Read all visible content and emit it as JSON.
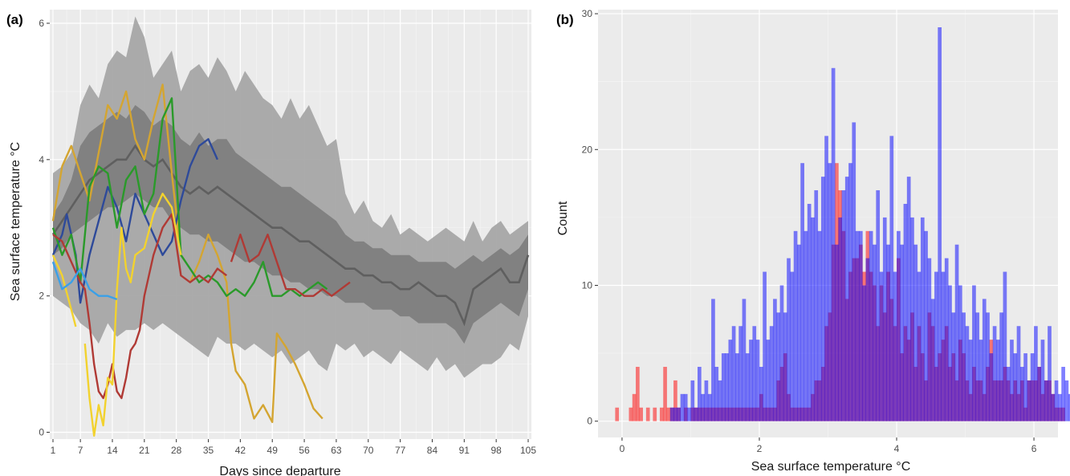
{
  "panels": {
    "a_label": "(a)",
    "b_label": "(b)"
  },
  "chart_data": [
    {
      "type": "line",
      "panel": "(a)",
      "xlabel": "Days since departure",
      "ylabel": "Sea surface temperature  °C",
      "xlim": [
        0.3,
        105.7
      ],
      "ylim": [
        -0.1,
        6.2
      ],
      "xticks": [
        1,
        7,
        14,
        21,
        28,
        35,
        42,
        49,
        56,
        63,
        70,
        77,
        84,
        91,
        98,
        105
      ],
      "yticks": [
        0,
        2,
        4,
        6
      ],
      "grid": true,
      "background": "#ebebeb",
      "envelope": {
        "x": [
          1,
          3,
          5,
          7,
          9,
          11,
          13,
          15,
          17,
          19,
          21,
          23,
          25,
          27,
          29,
          31,
          33,
          35,
          37,
          39,
          41,
          43,
          45,
          47,
          49,
          51,
          53,
          55,
          57,
          59,
          61,
          63,
          65,
          67,
          69,
          71,
          73,
          75,
          77,
          79,
          81,
          83,
          85,
          87,
          89,
          91,
          93,
          95,
          97,
          99,
          101,
          103,
          105
        ],
        "outer_upper": [
          3.8,
          3.9,
          4.1,
          4.8,
          5.1,
          4.9,
          5.4,
          5.6,
          5.5,
          6.1,
          5.8,
          5.2,
          5.4,
          5.6,
          5.0,
          5.3,
          5.4,
          5.2,
          5.5,
          5.3,
          5.0,
          5.3,
          5.1,
          4.9,
          4.8,
          4.6,
          4.9,
          4.6,
          4.8,
          4.5,
          4.2,
          4.3,
          3.5,
          3.2,
          3.4,
          3.1,
          3.0,
          3.2,
          2.9,
          3.0,
          2.9,
          2.8,
          2.9,
          3.0,
          2.9,
          2.8,
          3.1,
          2.8,
          3.0,
          3.1,
          2.9,
          3.0,
          3.1
        ],
        "inner_upper": [
          3.2,
          3.4,
          3.7,
          4.2,
          4.4,
          4.5,
          4.6,
          4.7,
          4.6,
          4.8,
          4.7,
          4.5,
          4.6,
          4.5,
          4.3,
          4.2,
          4.4,
          4.2,
          4.3,
          4.3,
          4.1,
          4.0,
          3.9,
          3.8,
          3.7,
          3.6,
          3.6,
          3.5,
          3.4,
          3.3,
          3.2,
          3.1,
          2.9,
          2.8,
          2.8,
          2.7,
          2.7,
          2.6,
          2.6,
          2.6,
          2.5,
          2.5,
          2.5,
          2.5,
          2.4,
          2.5,
          2.6,
          2.5,
          2.6,
          2.7,
          2.6,
          2.7,
          2.9
        ],
        "mean": [
          2.9,
          3.1,
          3.3,
          3.5,
          3.7,
          3.8,
          3.9,
          4.0,
          4.0,
          4.2,
          4.0,
          3.9,
          4.0,
          3.8,
          3.6,
          3.5,
          3.6,
          3.5,
          3.6,
          3.5,
          3.4,
          3.3,
          3.2,
          3.1,
          3.0,
          3.0,
          2.9,
          2.8,
          2.8,
          2.7,
          2.6,
          2.5,
          2.4,
          2.4,
          2.3,
          2.3,
          2.2,
          2.2,
          2.1,
          2.1,
          2.2,
          2.1,
          2.0,
          2.0,
          1.9,
          1.6,
          2.1,
          2.2,
          2.3,
          2.4,
          2.2,
          2.2,
          2.6
        ],
        "inner_lower": [
          2.6,
          2.7,
          2.9,
          3.0,
          3.1,
          3.2,
          3.3,
          3.3,
          3.4,
          3.5,
          3.4,
          3.3,
          3.3,
          3.1,
          3.0,
          2.9,
          2.9,
          2.8,
          2.8,
          2.7,
          2.6,
          2.5,
          2.5,
          2.4,
          2.3,
          2.3,
          2.2,
          2.2,
          2.1,
          2.1,
          2.0,
          2.0,
          1.9,
          1.9,
          1.9,
          1.8,
          1.8,
          1.8,
          1.7,
          1.7,
          1.6,
          1.6,
          1.6,
          1.6,
          1.5,
          1.3,
          1.6,
          1.7,
          1.8,
          1.9,
          1.8,
          1.7,
          2.1
        ],
        "outer_lower": [
          2.0,
          1.9,
          1.8,
          1.6,
          1.5,
          1.3,
          1.6,
          1.4,
          1.5,
          1.5,
          1.6,
          1.5,
          1.6,
          1.5,
          1.4,
          1.3,
          1.2,
          1.1,
          1.4,
          1.3,
          1.3,
          1.2,
          1.3,
          1.2,
          1.1,
          1.2,
          1.0,
          1.1,
          1.2,
          1.0,
          0.9,
          1.3,
          1.2,
          1.3,
          1.1,
          1.2,
          1.1,
          1.0,
          1.2,
          1.1,
          1.0,
          0.9,
          1.1,
          0.9,
          1.0,
          0.8,
          0.9,
          1.0,
          1.0,
          1.1,
          1.3,
          1.2,
          1.7
        ]
      },
      "series": [
        {
          "color": "#d4a531",
          "x": [
            1,
            3,
            5,
            7,
            9,
            11,
            13,
            15,
            17,
            19,
            21,
            23,
            25,
            27,
            29,
            30
          ],
          "y": [
            3.1,
            3.9,
            4.2,
            3.8,
            3.4,
            4.1,
            4.8,
            4.6,
            5.0,
            4.3,
            4.0,
            4.6,
            5.1,
            3.8,
            2.6,
            2.5
          ]
        },
        {
          "color": "#d4a531",
          "x": [
            31,
            33,
            35,
            37,
            39,
            40,
            41,
            43,
            45,
            47,
            49,
            50,
            52,
            54,
            56,
            58,
            60
          ],
          "y": [
            2.2,
            2.5,
            2.9,
            2.6,
            2.2,
            1.3,
            0.9,
            0.7,
            0.2,
            0.4,
            0.15,
            1.45,
            1.25,
            1.0,
            0.7,
            0.35,
            0.2
          ]
        },
        {
          "color": "#2e4a9a",
          "x": [
            1,
            3,
            4,
            6,
            7,
            9,
            11,
            13,
            15,
            17,
            19,
            21,
            23,
            25,
            27,
            29,
            31,
            33,
            35,
            37
          ],
          "y": [
            2.6,
            2.9,
            3.2,
            2.6,
            1.9,
            2.6,
            3.1,
            3.6,
            3.3,
            2.8,
            3.5,
            3.2,
            2.9,
            2.6,
            2.8,
            3.4,
            3.9,
            4.2,
            4.3,
            4.0
          ]
        },
        {
          "color": "#2a9a2a",
          "x": [
            1,
            3,
            5,
            7,
            9,
            11,
            13,
            15,
            17,
            19,
            21,
            23,
            25,
            27,
            29,
            31,
            33,
            35,
            37,
            39,
            41,
            43,
            45,
            47,
            49,
            51,
            53,
            55,
            57,
            59,
            61
          ],
          "y": [
            3.0,
            2.6,
            2.9,
            2.2,
            3.6,
            3.9,
            3.8,
            3.0,
            3.7,
            3.9,
            3.2,
            3.5,
            4.6,
            4.9,
            2.6,
            2.4,
            2.2,
            2.3,
            2.2,
            2.0,
            2.1,
            2.0,
            2.2,
            2.5,
            2.0,
            2.0,
            2.1,
            2.0,
            2.1,
            2.2,
            2.1
          ]
        },
        {
          "color": "#b03a35",
          "x": [
            1,
            3,
            5,
            7,
            8,
            9,
            10,
            11,
            12,
            13,
            14,
            15,
            16,
            17,
            18,
            19,
            20,
            21,
            23,
            25,
            27,
            29,
            31,
            33,
            35,
            37,
            39
          ],
          "y": [
            2.9,
            2.8,
            2.5,
            2.2,
            2.1,
            1.6,
            1.0,
            0.6,
            0.5,
            0.7,
            1.0,
            0.6,
            0.5,
            0.8,
            1.2,
            1.3,
            1.5,
            2.0,
            2.6,
            3.0,
            3.2,
            2.3,
            2.2,
            2.3,
            2.2,
            2.4,
            2.3
          ]
        },
        {
          "color": "#b03a35",
          "x": [
            40,
            42,
            44,
            46,
            48,
            50,
            52,
            54,
            56,
            58,
            60,
            62,
            64,
            66
          ],
          "y": [
            2.5,
            2.9,
            2.5,
            2.6,
            2.9,
            2.5,
            2.1,
            2.1,
            2.0,
            2.0,
            2.1,
            2.0,
            2.1,
            2.2
          ]
        },
        {
          "color": "#f2d22e",
          "x": [
            1,
            3,
            5,
            6
          ],
          "y": [
            2.6,
            2.3,
            1.8,
            1.55
          ]
        },
        {
          "color": "#f2d22e",
          "x": [
            8,
            9,
            10,
            11,
            12,
            13,
            14,
            15,
            16,
            17,
            18,
            19,
            21,
            23,
            25,
            27,
            29
          ],
          "y": [
            1.3,
            0.5,
            -0.05,
            0.4,
            0.1,
            0.8,
            0.7,
            2.1,
            3.0,
            2.4,
            2.2,
            2.6,
            2.7,
            3.2,
            3.5,
            3.3,
            2.6
          ]
        },
        {
          "color": "#3aa0e8",
          "x": [
            1,
            3,
            5,
            7,
            9,
            11,
            13,
            15
          ],
          "y": [
            2.5,
            2.1,
            2.2,
            2.4,
            2.1,
            2.0,
            2.0,
            1.95
          ]
        }
      ]
    },
    {
      "type": "histogram",
      "panel": "(b)",
      "xlabel": "Sea surface temperature  °C",
      "ylabel": "Count",
      "xlim": [
        -0.35,
        6.35
      ],
      "ylim": [
        -1.2,
        30.3
      ],
      "xticks": [
        0,
        2,
        4,
        6
      ],
      "yticks": [
        0,
        10,
        20,
        30
      ],
      "grid": true,
      "background": "#ebebeb",
      "bin_width": 0.05,
      "bin_start": -0.1,
      "series": [
        {
          "color": "#ff0000",
          "opacity": 0.5,
          "counts": [
            1,
            0,
            0,
            0,
            1,
            2,
            4,
            1,
            0,
            1,
            0,
            1,
            0,
            1,
            4,
            1,
            1,
            3,
            1,
            0,
            1,
            0,
            1,
            1,
            1,
            1,
            1,
            1,
            1,
            1,
            1,
            1,
            1,
            1,
            1,
            1,
            1,
            1,
            1,
            1,
            1,
            1,
            2,
            1,
            1,
            1,
            1,
            3,
            4,
            5,
            2,
            1,
            1,
            1,
            1,
            1,
            1,
            2,
            3,
            3,
            4,
            7,
            8,
            13,
            19,
            17,
            14,
            9,
            11,
            12,
            12,
            13,
            11,
            14,
            11,
            10,
            7,
            10,
            8,
            11,
            9,
            7,
            12,
            5,
            7,
            6,
            8,
            4,
            7,
            5,
            3,
            8,
            7,
            4,
            5,
            6,
            7,
            4,
            5,
            3,
            6,
            5,
            3,
            2,
            4,
            3,
            3,
            2,
            4,
            6,
            3,
            3,
            3,
            4,
            3,
            2,
            3,
            2,
            3,
            1,
            3,
            3,
            3,
            4,
            2,
            3,
            3,
            2,
            1,
            1,
            1,
            0,
            0,
            0,
            0,
            0,
            0,
            0,
            1,
            0,
            0,
            0,
            0,
            2,
            1
          ]
        },
        {
          "color": "#0000ff",
          "opacity": 0.5,
          "counts": [
            0,
            0,
            0,
            0,
            0,
            0,
            0,
            0,
            0,
            0,
            0,
            0,
            0,
            0,
            0,
            0,
            1,
            1,
            1,
            2,
            2,
            1,
            3,
            1,
            4,
            2,
            3,
            2,
            9,
            4,
            3,
            5,
            5,
            6,
            7,
            5,
            7,
            9,
            5,
            6,
            7,
            6,
            4,
            11,
            6,
            7,
            9,
            8,
            10,
            8,
            12,
            11,
            14,
            13,
            19,
            14,
            16,
            15,
            17,
            14,
            18,
            21,
            19,
            26,
            13,
            15,
            17,
            18,
            19,
            22,
            14,
            14,
            10,
            12,
            14,
            13,
            17,
            11,
            15,
            13,
            21,
            11,
            14,
            13,
            16,
            18,
            15,
            13,
            11,
            15,
            14,
            12,
            9,
            11,
            29,
            11,
            12,
            10,
            8,
            13,
            10,
            8,
            7,
            6,
            10,
            8,
            6,
            9,
            8,
            5,
            7,
            6,
            8,
            11,
            4,
            6,
            5,
            7,
            4,
            5,
            3,
            5,
            7,
            4,
            6,
            3,
            7,
            2,
            3,
            2,
            4,
            3,
            2,
            3,
            1,
            1,
            0,
            0,
            0,
            0,
            0,
            0,
            0,
            0,
            1,
            1
          ]
        }
      ]
    }
  ]
}
